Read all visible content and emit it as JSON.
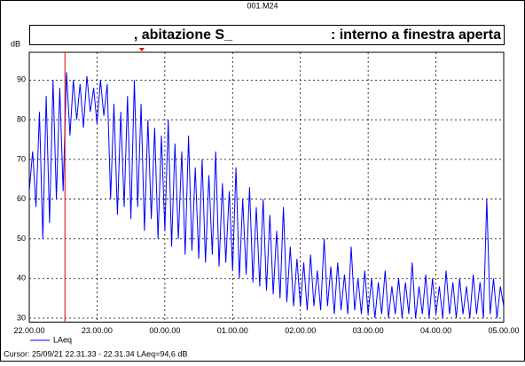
{
  "chart_data": {
    "type": "line",
    "window_title": "001.M24",
    "title_left": ", abitazione S_",
    "title_right": ": interno a finestra aperta",
    "y_label": "dB",
    "cursor_text": "Cursor: 25/09/21 22.31.33 - 22.31.34  LAeq=94,6 dB",
    "cursor_x": 22.526,
    "marker_x": 23.66,
    "cursor_color": "#e00000",
    "grid": true,
    "xlim": [
      22,
      29
    ],
    "ylim": [
      29,
      97
    ],
    "xticks": [
      {
        "value": 22,
        "label": "22.00.00"
      },
      {
        "value": 23,
        "label": "23.00.00"
      },
      {
        "value": 24,
        "label": "00.00.00"
      },
      {
        "value": 25,
        "label": "01.00.00"
      },
      {
        "value": 26,
        "label": "02.00.00"
      },
      {
        "value": 27,
        "label": "03.00.00"
      },
      {
        "value": 28,
        "label": "04.00.00"
      },
      {
        "value": 29,
        "label": "05.00.00"
      }
    ],
    "yticks": [
      30,
      40,
      50,
      60,
      70,
      80,
      90
    ],
    "x": [
      22.0,
      22.05,
      22.1,
      22.15,
      22.2,
      22.25,
      22.3,
      22.35,
      22.4,
      22.45,
      22.5,
      22.55,
      22.6,
      22.65,
      22.7,
      22.75,
      22.8,
      22.85,
      22.9,
      22.95,
      23.0,
      23.05,
      23.1,
      23.15,
      23.2,
      23.25,
      23.3,
      23.35,
      23.4,
      23.45,
      23.5,
      23.55,
      23.6,
      23.65,
      23.7,
      23.75,
      23.8,
      23.85,
      23.9,
      23.95,
      24.0,
      24.05,
      24.1,
      24.15,
      24.2,
      24.25,
      24.3,
      24.35,
      24.4,
      24.45,
      24.5,
      24.55,
      24.6,
      24.65,
      24.7,
      24.75,
      24.8,
      24.85,
      24.9,
      24.95,
      25.0,
      25.05,
      25.1,
      25.15,
      25.2,
      25.25,
      25.3,
      25.35,
      25.4,
      25.45,
      25.5,
      25.55,
      25.6,
      25.65,
      25.7,
      25.75,
      25.8,
      25.85,
      25.9,
      25.95,
      26.0,
      26.05,
      26.1,
      26.15,
      26.2,
      26.25,
      26.3,
      26.35,
      26.4,
      26.45,
      26.5,
      26.55,
      26.6,
      26.65,
      26.7,
      26.75,
      26.8,
      26.85,
      26.9,
      26.95,
      27.0,
      27.05,
      27.1,
      27.15,
      27.2,
      27.25,
      27.3,
      27.35,
      27.4,
      27.45,
      27.5,
      27.55,
      27.6,
      27.65,
      27.7,
      27.75,
      27.8,
      27.85,
      27.9,
      27.95,
      28.0,
      28.05,
      28.1,
      28.15,
      28.2,
      28.25,
      28.3,
      28.35,
      28.4,
      28.45,
      28.5,
      28.55,
      28.6,
      28.65,
      28.7,
      28.75,
      28.8,
      28.85,
      28.9,
      28.95,
      29.0
    ],
    "series": [
      {
        "name": "LAeq",
        "color": "#0000ff",
        "values": [
          62,
          72,
          58,
          82,
          50,
          86,
          54,
          90,
          60,
          88,
          62,
          92,
          76,
          90,
          80,
          89,
          78,
          91,
          82,
          88,
          79,
          90,
          81,
          89,
          60,
          84,
          56,
          82,
          58,
          86,
          55,
          90,
          58,
          84,
          52,
          80,
          55,
          78,
          50,
          76,
          52,
          80,
          48,
          74,
          50,
          72,
          46,
          76,
          47,
          68,
          45,
          70,
          44,
          66,
          46,
          72,
          43,
          64,
          44,
          62,
          42,
          68,
          40,
          60,
          41,
          63,
          39,
          58,
          38,
          60,
          37,
          56,
          36,
          52,
          35,
          58,
          34,
          48,
          33,
          45,
          33,
          44,
          32,
          46,
          33,
          42,
          32,
          50,
          33,
          43,
          31,
          44,
          32,
          41,
          31,
          48,
          32,
          40,
          31,
          42,
          31,
          40,
          30,
          39,
          31,
          42,
          30,
          38,
          31,
          40,
          30,
          39,
          31,
          44,
          30,
          38,
          31,
          41,
          30,
          40,
          31,
          38,
          30,
          42,
          31,
          39,
          30,
          40,
          31,
          38,
          30,
          41,
          31,
          39,
          30,
          60,
          31,
          40,
          30,
          38,
          33
        ]
      }
    ]
  }
}
